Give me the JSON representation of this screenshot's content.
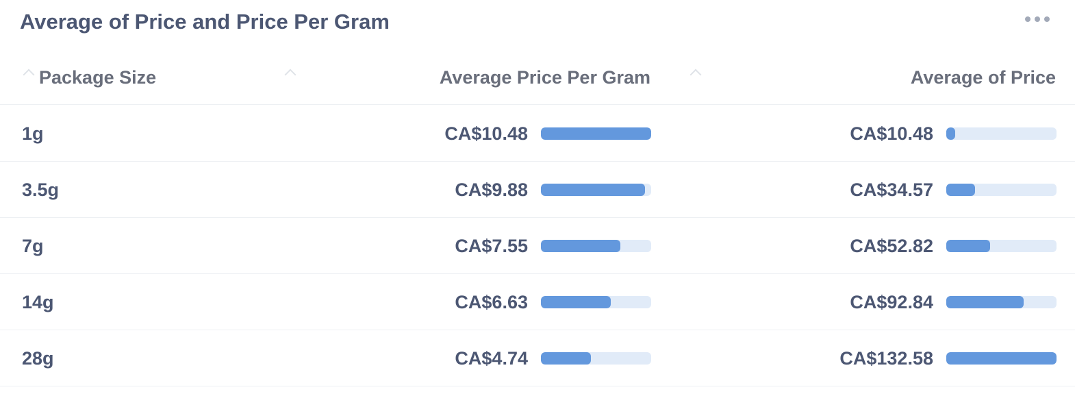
{
  "card": {
    "title": "Average of Price and Price Per Gram",
    "menu_icon": "ellipsis-icon"
  },
  "colors": {
    "text": "#4c5773",
    "header_text": "#696e7b",
    "bar_fill": "#6398dd",
    "bar_track": "#e1ebf8",
    "divider": "#edf0f3"
  },
  "chart_data": {
    "type": "table",
    "columns": [
      "Package Size",
      "Average Price Per Gram",
      "Average of Price"
    ],
    "rows": [
      {
        "size": "1g",
        "price_per_gram": 10.48,
        "price_per_gram_label": "CA$10.48",
        "avg_price": 10.48,
        "avg_price_label": "CA$10.48"
      },
      {
        "size": "3.5g",
        "price_per_gram": 9.88,
        "price_per_gram_label": "CA$9.88",
        "avg_price": 34.57,
        "avg_price_label": "CA$34.57"
      },
      {
        "size": "7g",
        "price_per_gram": 7.55,
        "price_per_gram_label": "CA$7.55",
        "avg_price": 52.82,
        "avg_price_label": "CA$52.82"
      },
      {
        "size": "14g",
        "price_per_gram": 6.63,
        "price_per_gram_label": "CA$6.63",
        "avg_price": 92.84,
        "avg_price_label": "CA$92.84"
      },
      {
        "size": "28g",
        "price_per_gram": 4.74,
        "price_per_gram_label": "CA$4.74",
        "avg_price": 132.58,
        "avg_price_label": "CA$132.58"
      }
    ]
  }
}
